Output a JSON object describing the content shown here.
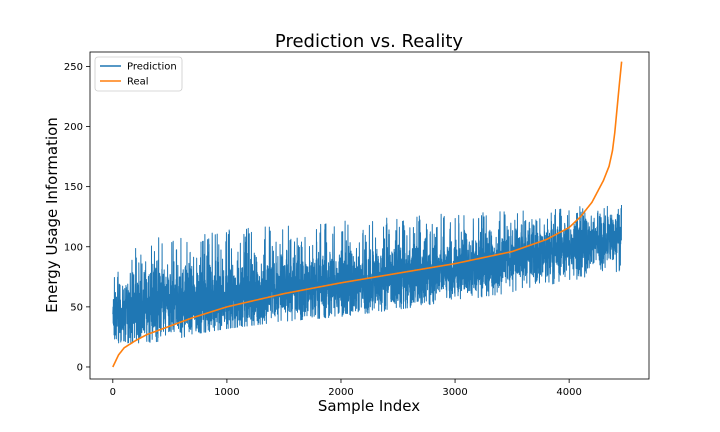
{
  "chart_data": {
    "type": "line",
    "title": "Prediction vs. Reality",
    "xlabel": "Sample Index",
    "ylabel": "Energy Usage Information",
    "xlim": [
      -200,
      4700
    ],
    "ylim": [
      -10,
      262
    ],
    "xticks": [
      0,
      1000,
      2000,
      3000,
      4000
    ],
    "yticks": [
      0,
      50,
      100,
      150,
      200,
      250
    ],
    "grid": false,
    "legend": "top-left",
    "n_samples": 4460,
    "series": [
      {
        "name": "Prediction",
        "color": "#1f77b4",
        "style": "noisy",
        "x": [
          0,
          250,
          500,
          750,
          1000,
          1500,
          2000,
          2500,
          3000,
          3500,
          4000,
          4200,
          4450
        ],
        "center": [
          42,
          50,
          52,
          55,
          58,
          65,
          70,
          75,
          82,
          90,
          100,
          105,
          110
        ],
        "noise_min": [
          20,
          20,
          22,
          28,
          32,
          38,
          42,
          48,
          55,
          62,
          72,
          75,
          80
        ],
        "noise_max": [
          80,
          105,
          110,
          112,
          115,
          118,
          122,
          125,
          128,
          130,
          133,
          135,
          135
        ]
      },
      {
        "name": "Real",
        "color": "#ff7f0e",
        "style": "smooth",
        "x": [
          0,
          50,
          100,
          200,
          300,
          500,
          700,
          1000,
          1500,
          2000,
          2500,
          3000,
          3500,
          3800,
          4000,
          4100,
          4200,
          4250,
          4300,
          4350,
          4380,
          4400,
          4420,
          4440,
          4460
        ],
        "y": [
          0,
          10,
          16,
          22,
          27,
          34,
          41,
          50,
          61,
          70,
          78,
          86,
          96,
          106,
          116,
          125,
          137,
          146,
          155,
          167,
          180,
          195,
          215,
          235,
          254
        ]
      }
    ]
  }
}
